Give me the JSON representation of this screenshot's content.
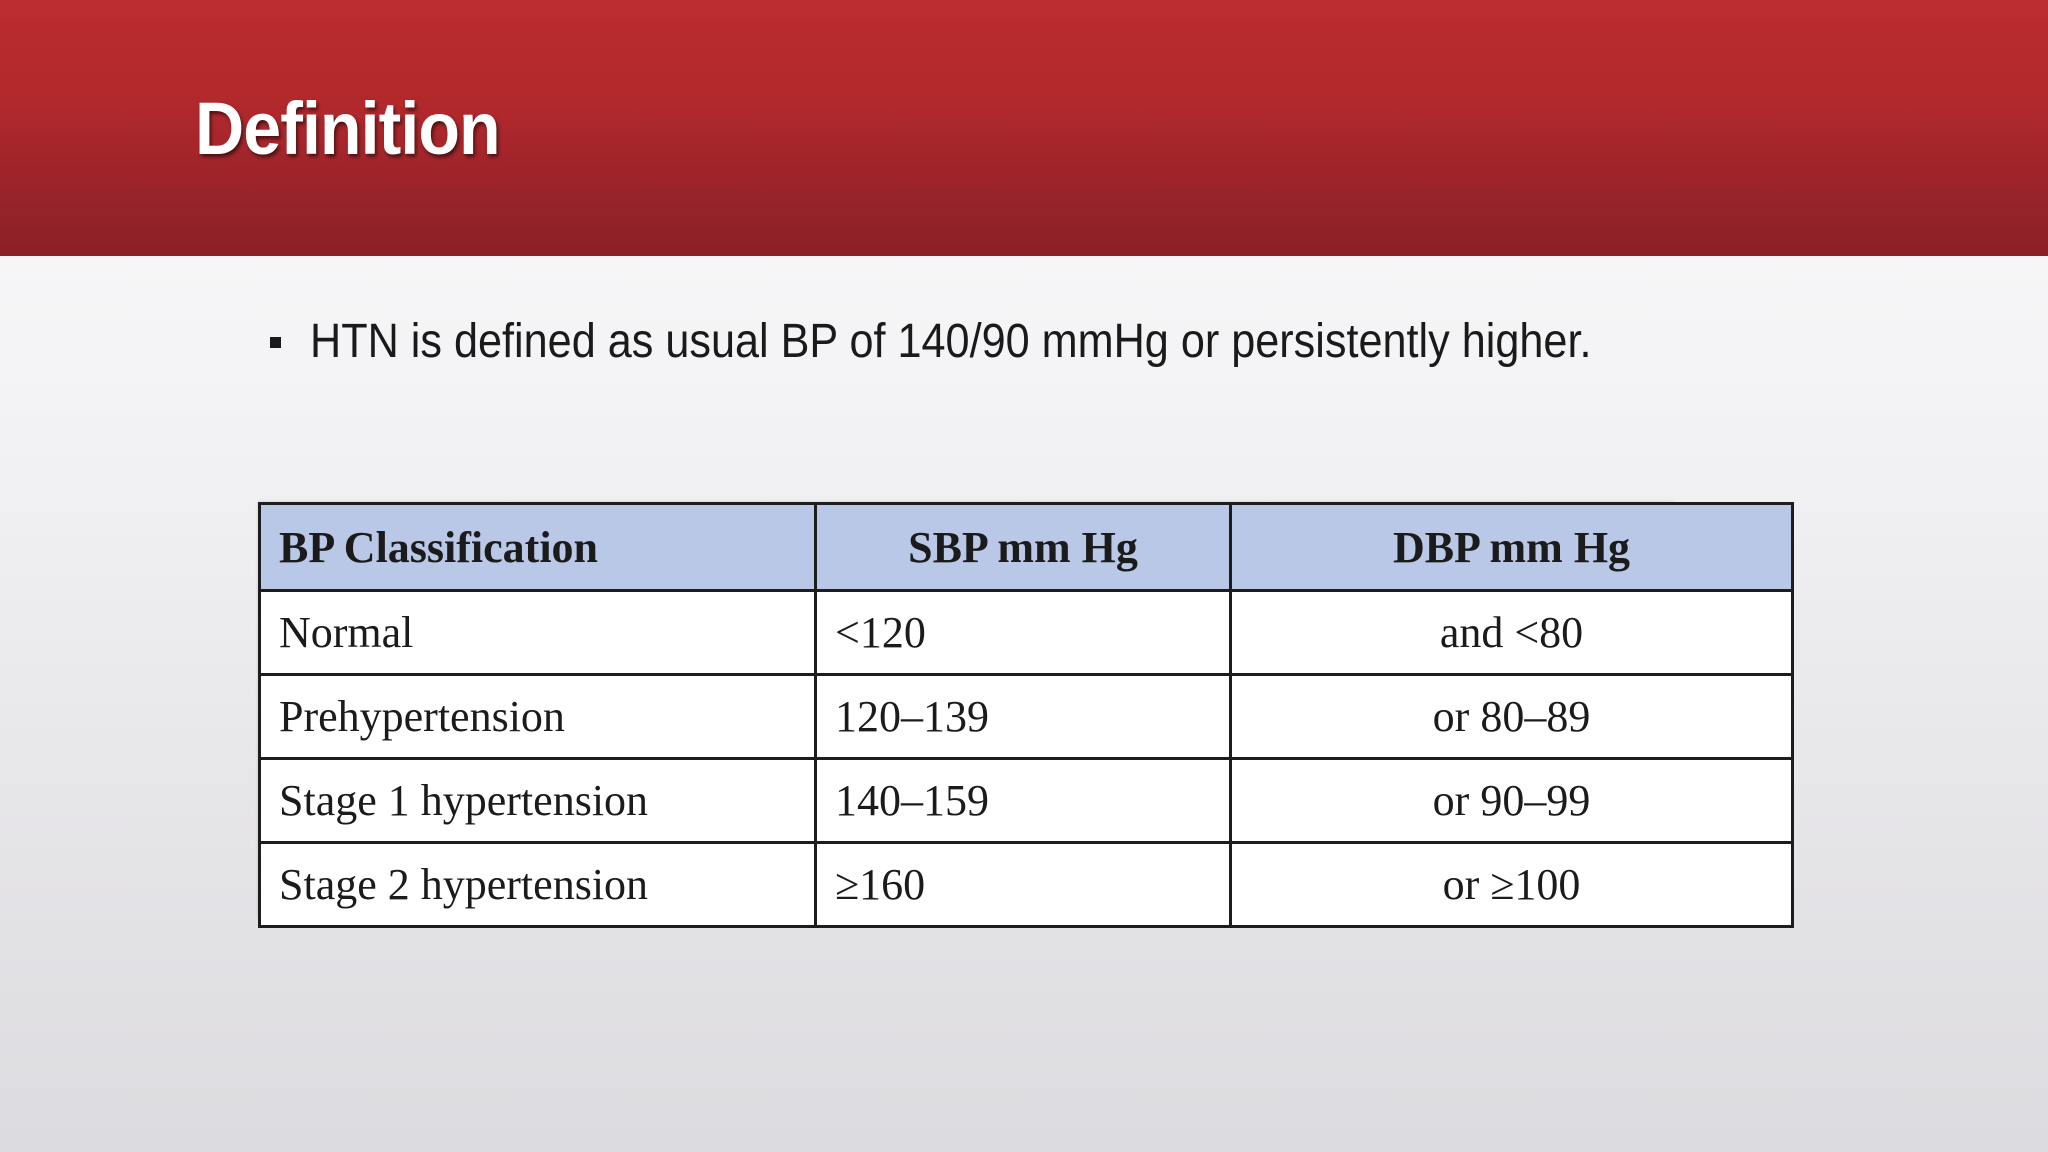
{
  "slide": {
    "title": "Definition",
    "bullets": [
      "HTN is defined as usual BP of 140/90 mmHg or persistently higher."
    ],
    "table": {
      "headers": [
        "BP Classification",
        "SBP mm Hg",
        "DBP mm Hg"
      ],
      "rows": [
        [
          "Normal",
          "<120",
          "and <80"
        ],
        [
          "Prehypertension",
          "120–139",
          "or 80–89"
        ],
        [
          "Stage 1 hypertension",
          "140–159",
          "or 90–99"
        ],
        [
          "Stage 2 hypertension",
          "≥160",
          "or ≥100"
        ]
      ]
    }
  },
  "colors": {
    "title_bar": "#b2292c",
    "title_text": "#ffffff",
    "table_header_bg": "#b9c8e6",
    "table_border": "#1d1d1d"
  }
}
